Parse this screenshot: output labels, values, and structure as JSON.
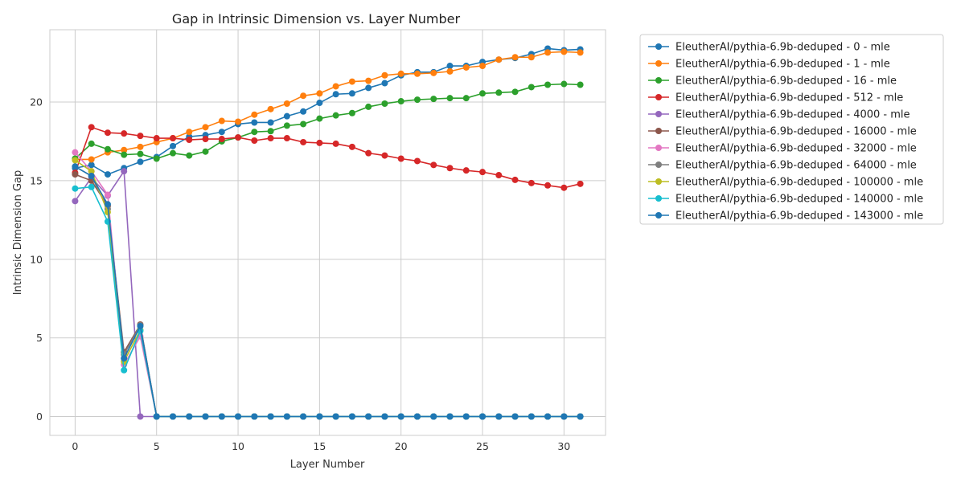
{
  "chart_data": {
    "type": "line",
    "title": "Gap in Intrinsic Dimension vs. Layer Number",
    "xlabel": "Layer Number",
    "ylabel": "Intrinsic Dimension Gap",
    "xlim": [
      -1.55,
      32.55
    ],
    "ylim": [
      -1.2,
      24.6
    ],
    "xticks": [
      0,
      5,
      10,
      15,
      20,
      25,
      30
    ],
    "yticks": [
      0,
      5,
      10,
      15,
      20
    ],
    "grid": true,
    "legend_position": "outside-right-top",
    "series": [
      {
        "name": "EleutherAI/pythia-6.9b-deduped - 0 - mle",
        "color": "#1f77b4",
        "x": [
          0,
          1,
          2,
          3,
          4,
          5,
          6,
          7,
          8,
          9,
          10,
          11,
          12,
          13,
          14,
          15,
          16,
          17,
          18,
          19,
          20,
          21,
          22,
          23,
          24,
          25,
          26,
          27,
          28,
          29,
          30,
          31
        ],
        "y": [
          15.8,
          16.0,
          15.4,
          15.8,
          16.2,
          16.5,
          17.2,
          17.8,
          17.9,
          18.1,
          18.6,
          18.7,
          18.7,
          19.1,
          19.4,
          19.95,
          20.5,
          20.55,
          20.9,
          21.2,
          21.7,
          21.9,
          21.9,
          22.3,
          22.3,
          22.55,
          22.7,
          22.8,
          23.05,
          23.4,
          23.3,
          23.35
        ]
      },
      {
        "name": "EleutherAI/pythia-6.9b-deduped - 1 - mle",
        "color": "#ff7f0e",
        "x": [
          0,
          1,
          2,
          3,
          4,
          5,
          6,
          7,
          8,
          9,
          10,
          11,
          12,
          13,
          14,
          15,
          16,
          17,
          18,
          19,
          20,
          21,
          22,
          23,
          24,
          25,
          26,
          27,
          28,
          29,
          30,
          31
        ],
        "y": [
          16.35,
          16.35,
          16.8,
          16.95,
          17.15,
          17.45,
          17.7,
          18.1,
          18.4,
          18.8,
          18.75,
          19.2,
          19.55,
          19.9,
          20.4,
          20.55,
          21.0,
          21.3,
          21.35,
          21.7,
          21.8,
          21.8,
          21.85,
          21.95,
          22.2,
          22.3,
          22.7,
          22.85,
          22.85,
          23.15,
          23.2,
          23.15
        ]
      },
      {
        "name": "EleutherAI/pythia-6.9b-deduped - 16 - mle",
        "color": "#2ca02c",
        "x": [
          0,
          1,
          2,
          3,
          4,
          5,
          6,
          7,
          8,
          9,
          10,
          11,
          12,
          13,
          14,
          15,
          16,
          17,
          18,
          19,
          20,
          21,
          22,
          23,
          24,
          25,
          26,
          27,
          28,
          29,
          30,
          31
        ],
        "y": [
          16.4,
          17.35,
          17.0,
          16.65,
          16.7,
          16.4,
          16.75,
          16.6,
          16.85,
          17.5,
          17.75,
          18.1,
          18.15,
          18.5,
          18.6,
          18.95,
          19.15,
          19.3,
          19.7,
          19.9,
          20.05,
          20.15,
          20.2,
          20.25,
          20.25,
          20.55,
          20.6,
          20.65,
          20.95,
          21.1,
          21.15,
          21.1
        ]
      },
      {
        "name": "EleutherAI/pythia-6.9b-deduped - 512 - mle",
        "color": "#d62728",
        "x": [
          0,
          1,
          2,
          3,
          4,
          5,
          6,
          7,
          8,
          9,
          10,
          11,
          12,
          13,
          14,
          15,
          16,
          17,
          18,
          19,
          20,
          21,
          22,
          23,
          24,
          25,
          26,
          27,
          28,
          29,
          30,
          31
        ],
        "y": [
          15.5,
          18.4,
          18.05,
          18.0,
          17.85,
          17.7,
          17.7,
          17.6,
          17.65,
          17.65,
          17.75,
          17.55,
          17.7,
          17.7,
          17.45,
          17.4,
          17.35,
          17.15,
          16.75,
          16.6,
          16.4,
          16.25,
          16.0,
          15.8,
          15.65,
          15.55,
          15.35,
          15.05,
          14.85,
          14.7,
          14.55,
          14.8
        ]
      },
      {
        "name": "EleutherAI/pythia-6.9b-deduped - 4000 - mle",
        "color": "#9467bd",
        "x": [
          0,
          1,
          2,
          3,
          4,
          5,
          6,
          7,
          8,
          9,
          10,
          11,
          12,
          13,
          14,
          15,
          16,
          17,
          18,
          19,
          20,
          21,
          22,
          23,
          24,
          25,
          26,
          27,
          28,
          29,
          30,
          31
        ],
        "y": [
          13.7,
          15.2,
          14.05,
          15.6,
          0,
          0,
          0,
          0,
          0,
          0,
          0,
          0,
          0,
          0,
          0,
          0,
          0,
          0,
          0,
          0,
          0,
          0,
          0,
          0,
          0,
          0,
          0,
          0,
          0,
          0,
          0,
          0
        ]
      },
      {
        "name": "EleutherAI/pythia-6.9b-deduped - 16000 - mle",
        "color": "#8c564b",
        "x": [
          0,
          1,
          2,
          3,
          4,
          5,
          6,
          7,
          8,
          9,
          10,
          11,
          12,
          13,
          14,
          15,
          16,
          17,
          18,
          19,
          20,
          21,
          22,
          23,
          24,
          25,
          26,
          27,
          28,
          29,
          30,
          31
        ],
        "y": [
          15.4,
          15.0,
          13.4,
          4.1,
          5.85,
          0,
          0,
          0,
          0,
          0,
          0,
          0,
          0,
          0,
          0,
          0,
          0,
          0,
          0,
          0,
          0,
          0,
          0,
          0,
          0,
          0,
          0,
          0,
          0,
          0,
          0,
          0
        ]
      },
      {
        "name": "EleutherAI/pythia-6.9b-deduped - 32000 - mle",
        "color": "#e377c2",
        "x": [
          0,
          1,
          2,
          3,
          4,
          5,
          6,
          7,
          8,
          9,
          10,
          11,
          12,
          13,
          14,
          15,
          16,
          17,
          18,
          19,
          20,
          21,
          22,
          23,
          24,
          25,
          26,
          27,
          28,
          29,
          30,
          31
        ],
        "y": [
          16.8,
          15.6,
          14.1,
          3.3,
          5.1,
          0,
          0,
          0,
          0,
          0,
          0,
          0,
          0,
          0,
          0,
          0,
          0,
          0,
          0,
          0,
          0,
          0,
          0,
          0,
          0,
          0,
          0,
          0,
          0,
          0,
          0,
          0
        ]
      },
      {
        "name": "EleutherAI/pythia-6.9b-deduped - 64000 - mle",
        "color": "#7f7f7f",
        "x": [
          0,
          1,
          2,
          3,
          4,
          5,
          6,
          7,
          8,
          9,
          10,
          11,
          12,
          13,
          14,
          15,
          16,
          17,
          18,
          19,
          20,
          21,
          22,
          23,
          24,
          25,
          26,
          27,
          28,
          29,
          30,
          31
        ],
        "y": [
          15.9,
          15.3,
          13.2,
          3.95,
          5.8,
          0,
          0,
          0,
          0,
          0,
          0,
          0,
          0,
          0,
          0,
          0,
          0,
          0,
          0,
          0,
          0,
          0,
          0,
          0,
          0,
          0,
          0,
          0,
          0,
          0,
          0,
          0
        ]
      },
      {
        "name": "EleutherAI/pythia-6.9b-deduped - 100000 - mle",
        "color": "#bcbd22",
        "x": [
          0,
          1,
          2,
          3,
          4,
          5,
          6,
          7,
          8,
          9,
          10,
          11,
          12,
          13,
          14,
          15,
          16,
          17,
          18,
          19,
          20,
          21,
          22,
          23,
          24,
          25,
          26,
          27,
          28,
          29,
          30,
          31
        ],
        "y": [
          16.3,
          15.6,
          13.0,
          3.5,
          5.5,
          0,
          0,
          0,
          0,
          0,
          0,
          0,
          0,
          0,
          0,
          0,
          0,
          0,
          0,
          0,
          0,
          0,
          0,
          0,
          0,
          0,
          0,
          0,
          0,
          0,
          0,
          0
        ]
      },
      {
        "name": "EleutherAI/pythia-6.9b-deduped - 140000 - mle",
        "color": "#17becf",
        "x": [
          0,
          1,
          2,
          3,
          4,
          5,
          6,
          7,
          8,
          9,
          10,
          11,
          12,
          13,
          14,
          15,
          16,
          17,
          18,
          19,
          20,
          21,
          22,
          23,
          24,
          25,
          26,
          27,
          28,
          29,
          30,
          31
        ],
        "y": [
          14.5,
          14.6,
          12.4,
          2.95,
          5.45,
          0,
          0,
          0,
          0,
          0,
          0,
          0,
          0,
          0,
          0,
          0,
          0,
          0,
          0,
          0,
          0,
          0,
          0,
          0,
          0,
          0,
          0,
          0,
          0,
          0,
          0,
          0
        ]
      },
      {
        "name": "EleutherAI/pythia-6.9b-deduped - 143000 - mle",
        "color": "#1f77b4",
        "x": [
          0,
          1,
          2,
          3,
          4,
          5,
          6,
          7,
          8,
          9,
          10,
          11,
          12,
          13,
          14,
          15,
          16,
          17,
          18,
          19,
          20,
          21,
          22,
          23,
          24,
          25,
          26,
          27,
          28,
          29,
          30,
          31
        ],
        "y": [
          15.9,
          15.3,
          13.5,
          3.7,
          5.75,
          0,
          0,
          0,
          0,
          0,
          0,
          0,
          0,
          0,
          0,
          0,
          0,
          0,
          0,
          0,
          0,
          0,
          0,
          0,
          0,
          0,
          0,
          0,
          0,
          0,
          0,
          0
        ]
      }
    ]
  }
}
